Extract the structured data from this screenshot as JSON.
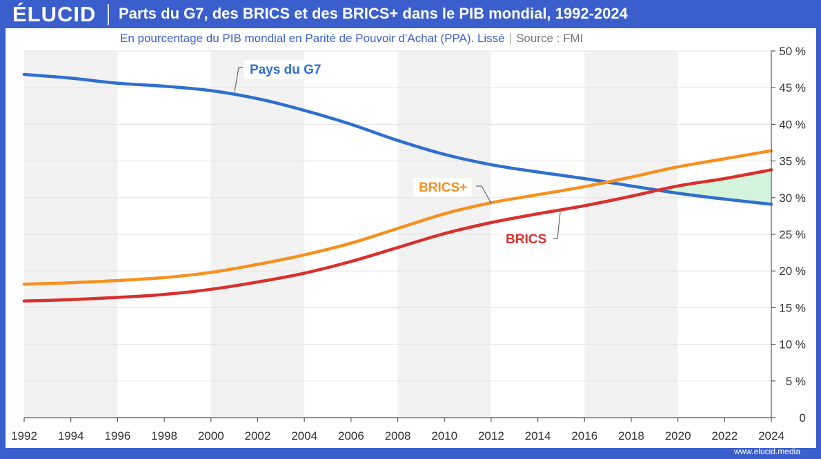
{
  "header": {
    "logo": "ÉLUCID",
    "title": "Parts du G7, des BRICS et des BRICS+ dans le PIB mondial, 1992-2024"
  },
  "subtitle": {
    "text": "En pourcentage du PIB mondial en Parité de Pouvoir d'Achat (PPA). Lissé",
    "source": "Source : FMI"
  },
  "footer": {
    "url": "www.elucid.media"
  },
  "colors": {
    "g7": "#2f6fce",
    "brics": "#d9302c",
    "brics_plus": "#f7901e",
    "gap_fill": "#d4f3dc",
    "band": "#f2f2f2",
    "frame": "#3a5fcd"
  },
  "chart_data": {
    "type": "line",
    "x": [
      1992,
      1994,
      1996,
      1998,
      2000,
      2002,
      2004,
      2006,
      2008,
      2010,
      2012,
      2014,
      2016,
      2018,
      2020,
      2022,
      2024
    ],
    "x_tick_labels": [
      "1992",
      "1994",
      "1996",
      "1998",
      "2000",
      "2002",
      "2004",
      "2006",
      "2008",
      "2010",
      "2012",
      "2014",
      "2016",
      "2018",
      "2020",
      "2022",
      "2024"
    ],
    "series": [
      {
        "name": "Pays du G7",
        "color": "#2f6fce",
        "values": [
          46.8,
          46.3,
          45.6,
          45.2,
          44.6,
          43.5,
          41.9,
          40.0,
          37.8,
          35.9,
          34.5,
          33.5,
          32.6,
          31.6,
          30.6,
          29.8,
          29.1
        ]
      },
      {
        "name": "BRICS+",
        "color": "#f7901e",
        "values": [
          18.2,
          18.4,
          18.7,
          19.1,
          19.8,
          20.9,
          22.2,
          23.8,
          25.8,
          27.8,
          29.3,
          30.4,
          31.5,
          32.8,
          34.2,
          35.3,
          36.4
        ]
      },
      {
        "name": "BRICS",
        "color": "#d9302c",
        "values": [
          15.9,
          16.1,
          16.4,
          16.8,
          17.5,
          18.5,
          19.7,
          21.3,
          23.2,
          25.1,
          26.6,
          27.8,
          28.9,
          30.2,
          31.6,
          32.6,
          33.8
        ]
      }
    ],
    "labels": {
      "g7": "Pays du G7",
      "brics_plus": "BRICS+",
      "brics": "BRICS"
    },
    "y_tick_labels": [
      "0",
      "5 %",
      "10 %",
      "15 %",
      "20 %",
      "25 %",
      "30 %",
      "35 %",
      "40 %",
      "45 %",
      "50 %"
    ],
    "y_ticks": [
      0,
      5,
      10,
      15,
      20,
      25,
      30,
      35,
      40,
      45,
      50
    ],
    "ylim": [
      0,
      50
    ],
    "xlim": [
      1992,
      2024
    ],
    "shaded_bands": [
      [
        1992,
        1996
      ],
      [
        2000,
        2004
      ],
      [
        2008,
        2012
      ],
      [
        2016,
        2020
      ]
    ],
    "gap_highlight": {
      "from": 2019,
      "to": 2024,
      "between": [
        "BRICS",
        "Pays du G7"
      ]
    },
    "grid": true,
    "legend": "inline-labels"
  }
}
